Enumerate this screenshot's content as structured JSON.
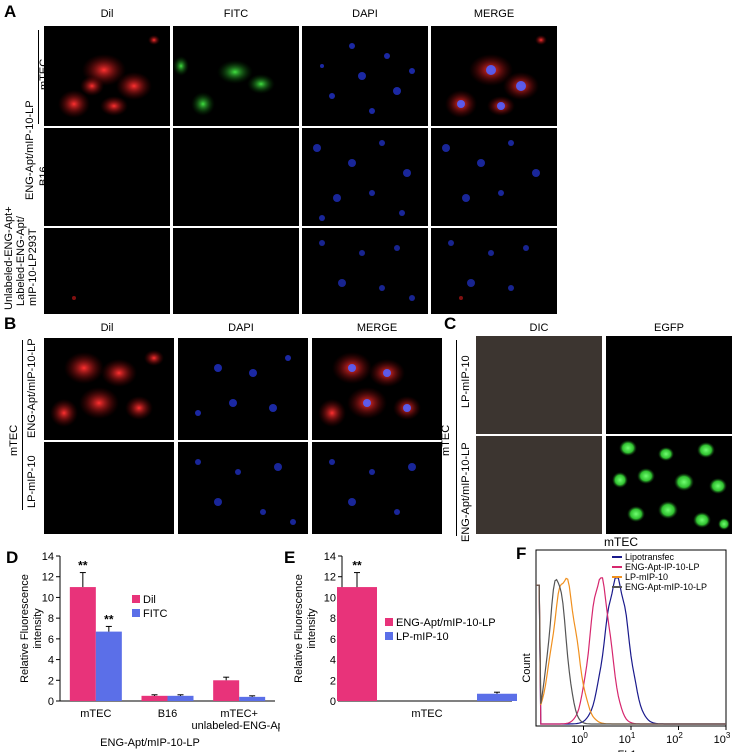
{
  "panels": {
    "A": {
      "label": "A",
      "columns": [
        "Dil",
        "FITC",
        "DAPI",
        "MERGE"
      ],
      "group_label": "ENG-Apt/mIP-10-LP",
      "rows": [
        "mTEC",
        "B16",
        "Unlabeled-ENG-Apt+ Labeled-ENG-Apt/ mIP-10-LP293T"
      ],
      "row3_lines": [
        "Unlabeled-ENG-Apt+",
        "Labeled-ENG-Apt/",
        "mIP-10-LP293T"
      ]
    },
    "B": {
      "label": "B",
      "columns": [
        "Dil",
        "DAPI",
        "MERGE"
      ],
      "side_label": "mTEC",
      "rows": [
        "ENG-Apt/mIP-10-LP",
        "LP-mIP-10"
      ]
    },
    "C": {
      "label": "C",
      "columns": [
        "DIC",
        "EGFP"
      ],
      "side_label": "mTEC",
      "rows": [
        "LP-mIP-10",
        "ENG-Apt/mIP-10-LP"
      ]
    },
    "D": {
      "label": "D"
    },
    "E": {
      "label": "E"
    },
    "F": {
      "label": "F"
    }
  },
  "chart_data": [
    {
      "id": "D",
      "type": "bar",
      "ylabel": "Relative Fluorescence intensity",
      "xlabel": "ENG-Apt/mIP-10-LP",
      "categories": [
        "mTEC",
        "B16",
        "mTEC+ unlabeled-ENG-Apt"
      ],
      "category_lines": [
        [
          "mTEC"
        ],
        [
          "B16"
        ],
        [
          "mTEC+",
          "unlabeled-ENG-Apt"
        ]
      ],
      "ylim": [
        0,
        14
      ],
      "yticks": [
        "0",
        "2",
        "4",
        "6",
        "8",
        "10",
        "12",
        "14"
      ],
      "series": [
        {
          "name": "Dil",
          "color": "#e8337a",
          "values": [
            11.0,
            0.5,
            2.0
          ],
          "errors": [
            1.4,
            0.1,
            0.3
          ]
        },
        {
          "name": "FITC",
          "color": "#5b6fe8",
          "values": [
            6.7,
            0.5,
            0.4
          ],
          "errors": [
            0.5,
            0.1,
            0.1
          ]
        }
      ],
      "annotations": [
        {
          "series": 0,
          "category": 0,
          "text": "**"
        },
        {
          "series": 1,
          "category": 0,
          "text": "**"
        }
      ],
      "legend_position": "right"
    },
    {
      "id": "E",
      "type": "bar",
      "ylabel": "Relative Fluorescence intensity",
      "xlabel": "",
      "categories": [
        "mTEC"
      ],
      "ylim": [
        0,
        14
      ],
      "yticks": [
        "0",
        "2",
        "4",
        "6",
        "8",
        "10",
        "12",
        "14"
      ],
      "series": [
        {
          "name": "ENG-Apt/mIP-10-LP",
          "color": "#e8337a",
          "values": [
            11.0
          ],
          "errors": [
            1.4
          ]
        },
        {
          "name": "LP-mIP-10",
          "color": "#5b6fe8",
          "values": [
            0.7
          ],
          "errors": [
            0.15
          ]
        }
      ],
      "annotations": [
        {
          "series": 0,
          "category": 0,
          "text": "**"
        }
      ],
      "legend_position": "right"
    },
    {
      "id": "F",
      "type": "line",
      "title": "mTEC",
      "xlabel": "FL1",
      "ylabel": "Count",
      "x_scale": "log",
      "xlim": [
        0.1,
        1000
      ],
      "xticks": [
        {
          "base": "10",
          "exp": "0"
        },
        {
          "base": "10",
          "exp": "1"
        },
        {
          "base": "10",
          "exp": "2"
        },
        {
          "base": "10",
          "exp": "3"
        }
      ],
      "series": [
        {
          "name": "Lipotransfec",
          "color": "#1a1a8c",
          "peak_log": 0.7,
          "width": 0.35
        },
        {
          "name": "ENG-Apt-IP-10-LP",
          "color": "#d6276e",
          "peak_log": 0.35,
          "width": 0.3
        },
        {
          "name": "LP-mIP-10",
          "color": "#f0901e",
          "peak_log": -0.4,
          "width": 0.35
        },
        {
          "name": "ENG-Apt-mIP-10-LP",
          "color": "#555555",
          "peak_log": -0.55,
          "width": 0.25
        }
      ],
      "legend_position": "top-right"
    }
  ]
}
